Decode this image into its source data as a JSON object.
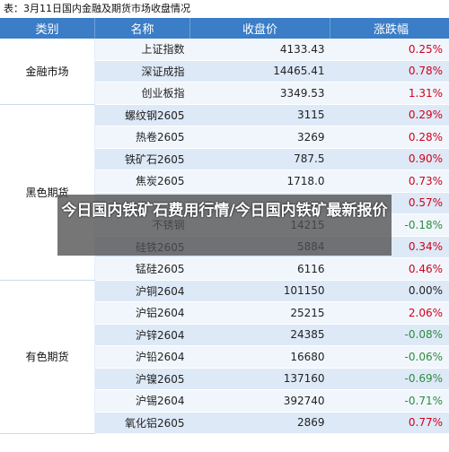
{
  "caption": "表：3月11日国内金融及期货市场收盘情况",
  "headers": [
    "类别",
    "名称",
    "收盘价",
    "涨跌幅"
  ],
  "groups": [
    {
      "category": "金融市场",
      "rows": [
        {
          "name": "上证指数",
          "close": "4133.43",
          "change": "0.25%",
          "dir": "up"
        },
        {
          "name": "深证成指",
          "close": "14465.41",
          "change": "0.78%",
          "dir": "up"
        },
        {
          "name": "创业板指",
          "close": "3349.53",
          "change": "1.31%",
          "dir": "up"
        }
      ]
    },
    {
      "category": "黑色期货",
      "rows": [
        {
          "name": "螺纹钢2605",
          "close": "3115",
          "change": "0.29%",
          "dir": "up"
        },
        {
          "name": "热卷2605",
          "close": "3269",
          "change": "0.28%",
          "dir": "up"
        },
        {
          "name": "铁矿石2605",
          "close": "787.5",
          "change": "0.90%",
          "dir": "up"
        },
        {
          "name": "焦炭2605",
          "close": "1718.0",
          "change": "0.73%",
          "dir": "up"
        },
        {
          "name": "",
          "close": "",
          "change": "0.57%",
          "dir": "up"
        },
        {
          "name": "不锈钢",
          "close": "14215",
          "change": "-0.18%",
          "dir": "down"
        },
        {
          "name": "硅铁2605",
          "close": "5884",
          "change": "0.34%",
          "dir": "up"
        },
        {
          "name": "锰硅2605",
          "close": "6116",
          "change": "0.46%",
          "dir": "up"
        }
      ]
    },
    {
      "category": "有色期货",
      "rows": [
        {
          "name": "沪铜2604",
          "close": "101150",
          "change": "0.00%",
          "dir": "flat"
        },
        {
          "name": "沪铝2604",
          "close": "25215",
          "change": "2.06%",
          "dir": "up"
        },
        {
          "name": "沪锌2604",
          "close": "24385",
          "change": "-0.08%",
          "dir": "down"
        },
        {
          "name": "沪铅2604",
          "close": "16680",
          "change": "-0.06%",
          "dir": "down"
        },
        {
          "name": "沪镍2605",
          "close": "137160",
          "change": "-0.69%",
          "dir": "down"
        },
        {
          "name": "沪锡2604",
          "close": "392740",
          "change": "-0.71%",
          "dir": "down"
        },
        {
          "name": "氧化铝2605",
          "close": "2869",
          "change": "0.77%",
          "dir": "up"
        }
      ]
    }
  ],
  "overlay_title": "今日国内铁矿石费用行情/今日国内铁矿最新报价"
}
